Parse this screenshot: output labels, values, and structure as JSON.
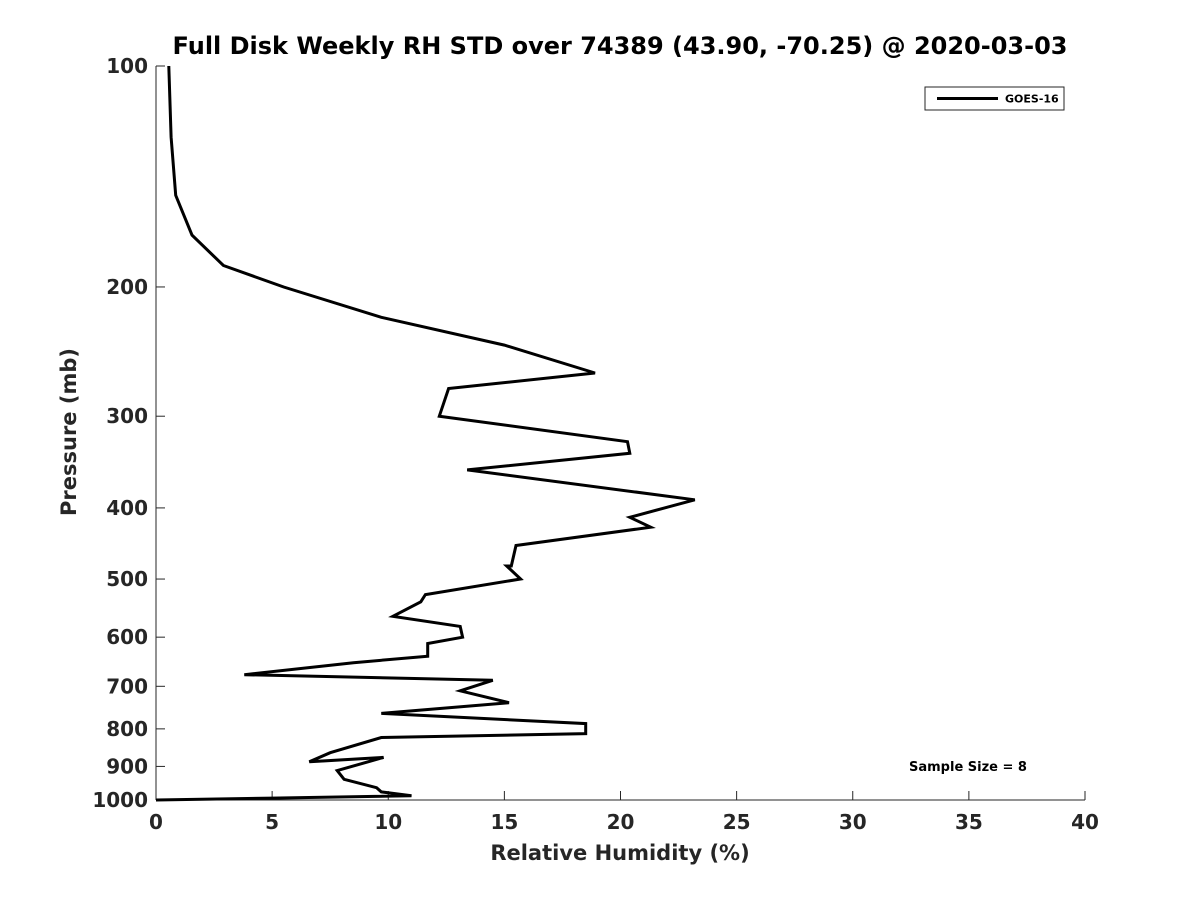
{
  "chart_data": {
    "type": "line",
    "title": "Full Disk Weekly RH STD over 74389 (43.90, -70.25) @ 2020-03-03",
    "xlabel": "Relative Humidity (%)",
    "ylabel": "Pressure (mb)",
    "xlim": [
      0,
      40
    ],
    "ylim": [
      100,
      1000
    ],
    "yscale": "log",
    "y_reversed": true,
    "xticks": [
      0,
      5,
      10,
      15,
      20,
      25,
      30,
      35,
      40
    ],
    "xtick_labels": [
      "0",
      "5",
      "10",
      "15",
      "20",
      "25",
      "30",
      "35",
      "40"
    ],
    "yticks": [
      100,
      200,
      300,
      400,
      500,
      600,
      700,
      800,
      900,
      1000
    ],
    "ytick_labels": [
      "100",
      "200",
      "300",
      "400",
      "500",
      "600",
      "700",
      "800",
      "900",
      "1000"
    ],
    "grid": false,
    "legend_position": "top-right",
    "annotation": "Sample Size = 8",
    "series": [
      {
        "name": "GOES-16",
        "color": "#000000",
        "x": [
          0.55,
          0.65,
          0.85,
          1.55,
          2.9,
          5.5,
          9.7,
          15.0,
          18.9,
          12.6,
          12.2,
          20.3,
          20.4,
          13.4,
          23.2,
          21.9,
          20.4,
          21.3,
          15.5,
          15.3,
          15.1,
          15.7,
          11.6,
          11.4,
          10.2,
          13.1,
          13.2,
          11.7,
          11.7,
          8.5,
          3.8,
          14.5,
          13.1,
          15.2,
          9.7,
          18.5,
          18.5,
          9.7,
          7.5,
          6.6,
          9.8,
          7.8,
          8.1,
          9.5,
          9.7,
          11.0,
          5.0,
          0.0
        ],
        "y": [
          100,
          125,
          150,
          170,
          187,
          200,
          220,
          240,
          262,
          275,
          300,
          325,
          337,
          355,
          390,
          400,
          412,
          425,
          450,
          480,
          480,
          500,
          525,
          537,
          562,
          580,
          600,
          612,
          637,
          650,
          675,
          687,
          710,
          737,
          762,
          787,
          812,
          822,
          862,
          887,
          875,
          912,
          937,
          962,
          975,
          987,
          994,
          1000
        ]
      }
    ]
  }
}
